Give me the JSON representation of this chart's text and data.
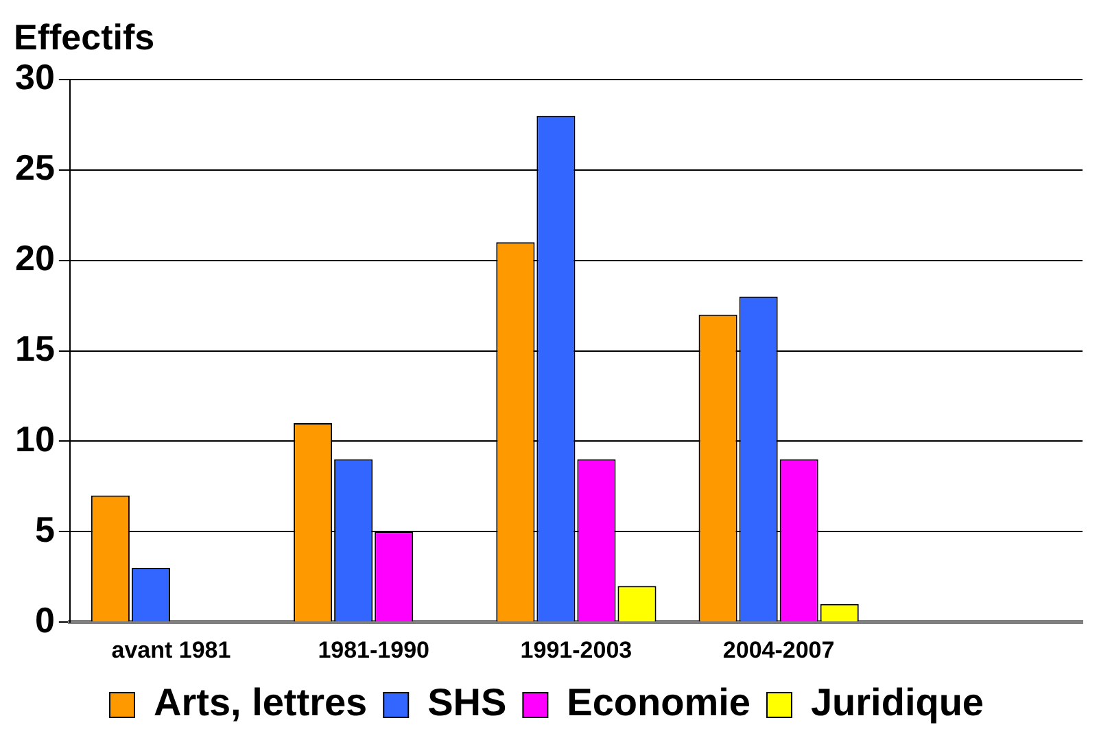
{
  "chart_data": {
    "type": "bar",
    "ylabel": "Effectifs",
    "categories": [
      "avant 1981",
      "1981-1990",
      "1991-2003",
      "2004-2007",
      null
    ],
    "series": [
      {
        "name": "Arts, lettres",
        "color": "#ff9900",
        "values": [
          7,
          11,
          21,
          17,
          null
        ]
      },
      {
        "name": "SHS",
        "color": "#3366ff",
        "values": [
          3,
          9,
          28,
          18,
          null
        ]
      },
      {
        "name": "Economie",
        "color": "#ff00ff",
        "values": [
          0,
          5,
          9,
          9,
          null
        ]
      },
      {
        "name": "Juridique",
        "color": "#ffff00",
        "values": [
          0,
          0,
          2,
          1,
          null
        ]
      }
    ],
    "ylim": [
      0,
      30
    ],
    "yticks": [
      0,
      5,
      10,
      15,
      20,
      25,
      30
    ],
    "grid": "y",
    "legend": "bottom"
  }
}
